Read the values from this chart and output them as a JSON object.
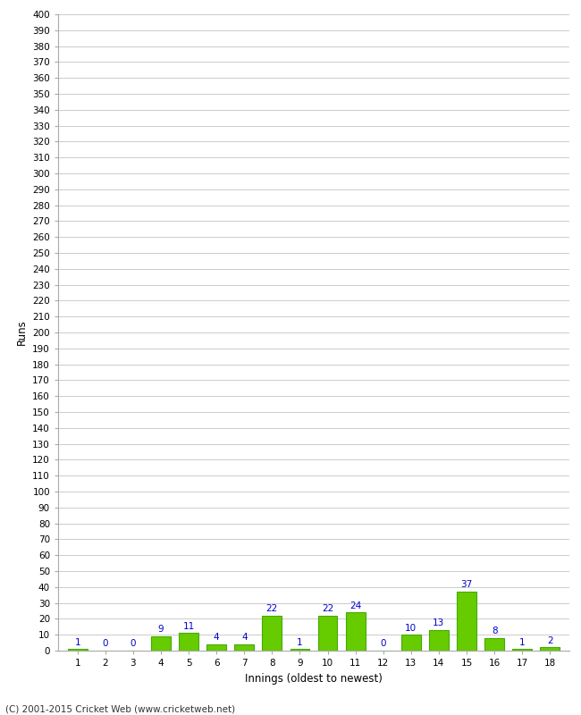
{
  "xlabel": "Innings (oldest to newest)",
  "ylabel": "Runs",
  "categories": [
    1,
    2,
    3,
    4,
    5,
    6,
    7,
    8,
    9,
    10,
    11,
    12,
    13,
    14,
    15,
    16,
    17,
    18
  ],
  "values": [
    1,
    0,
    0,
    9,
    11,
    4,
    4,
    22,
    1,
    22,
    24,
    0,
    10,
    13,
    37,
    8,
    1,
    2
  ],
  "bar_color": "#66cc00",
  "bar_edge_color": "#44aa00",
  "value_color": "#0000cc",
  "ylim": [
    0,
    400
  ],
  "background_color": "#ffffff",
  "grid_color": "#cccccc",
  "footnote": "(C) 2001-2015 Cricket Web (www.cricketweb.net)"
}
